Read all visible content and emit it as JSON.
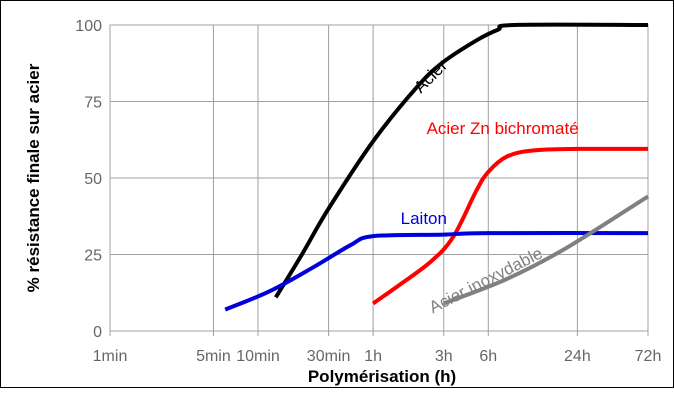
{
  "chart_data": {
    "type": "line",
    "title": "",
    "xlabel": "Polymérisation (h)",
    "ylabel": "% résistance finale sur acier",
    "x_scale": "log",
    "x_unit": "h",
    "x_ticks": [
      {
        "label": "1min",
        "value": 0.016667
      },
      {
        "label": "5min",
        "value": 0.083333
      },
      {
        "label": "10min",
        "value": 0.166667
      },
      {
        "label": "30min",
        "value": 0.5
      },
      {
        "label": "1h",
        "value": 1
      },
      {
        "label": "3h",
        "value": 3
      },
      {
        "label": "6h",
        "value": 6
      },
      {
        "label": "24h",
        "value": 24
      },
      {
        "label": "72h",
        "value": 72
      }
    ],
    "y_ticks": [
      0,
      25,
      50,
      75,
      100
    ],
    "ylim": [
      0,
      100
    ],
    "grid": true,
    "legend": "none",
    "series": [
      {
        "name": "Acier",
        "color": "#000000",
        "points": [
          {
            "x": 0.22,
            "y": 11
          },
          {
            "x": 0.33,
            "y": 25
          },
          {
            "x": 0.5,
            "y": 40
          },
          {
            "x": 1,
            "y": 62
          },
          {
            "x": 2,
            "y": 80
          },
          {
            "x": 3,
            "y": 88
          },
          {
            "x": 5,
            "y": 95
          },
          {
            "x": 7,
            "y": 98.5
          },
          {
            "x": 9,
            "y": 100
          },
          {
            "x": 72,
            "y": 100
          }
        ]
      },
      {
        "name": "Acier Zn bichromaté",
        "color": "#ff0000",
        "points": [
          {
            "x": 1,
            "y": 9
          },
          {
            "x": 1.5,
            "y": 15
          },
          {
            "x": 2.5,
            "y": 23
          },
          {
            "x": 3.5,
            "y": 31
          },
          {
            "x": 5,
            "y": 46
          },
          {
            "x": 6,
            "y": 52
          },
          {
            "x": 8,
            "y": 57
          },
          {
            "x": 12,
            "y": 59
          },
          {
            "x": 24,
            "y": 59.5
          },
          {
            "x": 72,
            "y": 59.5
          }
        ]
      },
      {
        "name": "Laiton",
        "color": "#0000dd",
        "points": [
          {
            "x": 0.1,
            "y": 7
          },
          {
            "x": 0.2,
            "y": 13
          },
          {
            "x": 0.4,
            "y": 21
          },
          {
            "x": 0.7,
            "y": 28
          },
          {
            "x": 1,
            "y": 31
          },
          {
            "x": 3,
            "y": 31.5
          },
          {
            "x": 6,
            "y": 32
          },
          {
            "x": 72,
            "y": 32
          }
        ]
      },
      {
        "name": "Acier inoxydable",
        "color": "#808080",
        "points": [
          {
            "x": 3,
            "y": 9
          },
          {
            "x": 8,
            "y": 17
          },
          {
            "x": 20,
            "y": 27
          },
          {
            "x": 72,
            "y": 44
          }
        ]
      }
    ]
  }
}
